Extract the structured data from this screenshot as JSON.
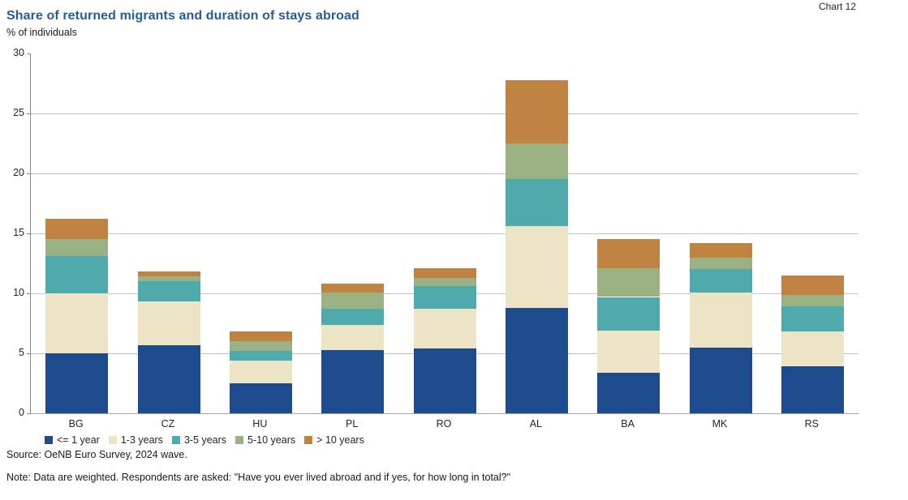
{
  "header": {
    "chart_number": "Chart 12",
    "title": "Share of returned migrants and duration of stays abroad",
    "subtitle": "% of individuals"
  },
  "footer": {
    "source": "Source: OeNB Euro Survey, 2024 wave.",
    "note": "Note: Data are weighted. Respondents are asked: \"Have you ever lived abroad and if yes, for how long in total?\""
  },
  "chart_data": {
    "type": "bar",
    "stacked": true,
    "title": "Share of returned migrants and duration of stays abroad",
    "ylabel": "% of individuals",
    "ylim": [
      0,
      30
    ],
    "ytick_step": 5,
    "grid": true,
    "legend_position": "bottom",
    "categories": [
      "BG",
      "CZ",
      "HU",
      "PL",
      "RO",
      "AL",
      "BA",
      "MK",
      "RS"
    ],
    "series": [
      {
        "name": "<= 1 year",
        "color": "#1e4b8d",
        "values": [
          5.0,
          5.7,
          2.5,
          5.3,
          5.4,
          8.8,
          3.4,
          5.5,
          3.9
        ]
      },
      {
        "name": "1-3 years",
        "color": "#ede4c6",
        "values": [
          5.0,
          3.6,
          1.9,
          2.1,
          3.3,
          6.8,
          3.5,
          4.6,
          2.9
        ]
      },
      {
        "name": "3-5 years",
        "color": "#4faaad",
        "values": [
          3.1,
          1.7,
          0.8,
          1.3,
          1.9,
          3.9,
          2.8,
          1.9,
          2.1
        ]
      },
      {
        "name": "5-10 years",
        "color": "#9ab183",
        "values": [
          1.4,
          0.4,
          0.8,
          1.4,
          0.7,
          3.0,
          2.4,
          1.0,
          1.0
        ]
      },
      {
        "name": "> 10 years",
        "color": "#c08240",
        "values": [
          1.7,
          0.4,
          0.8,
          0.7,
          0.8,
          5.3,
          2.4,
          1.2,
          1.6
        ]
      }
    ],
    "totals": [
      16.2,
      11.8,
      6.8,
      10.8,
      12.1,
      27.8,
      14.5,
      14.2,
      11.5
    ]
  },
  "colors": {
    "title": "#275d97",
    "gridline": "#b7c5cc",
    "axis": "#7f8d96",
    "text": "#262626"
  }
}
